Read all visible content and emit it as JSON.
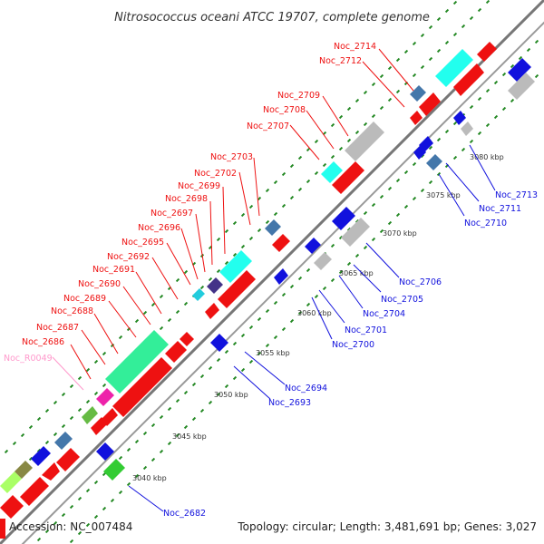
{
  "title": "Nitrosococcus oceani ATCC 19707, complete genome",
  "footer": {
    "accession": "Accession: NC_007484",
    "summary": "Topology: circular; Length: 3,481,691 bp; Genes: 3,027"
  },
  "colors": {
    "forward_gene": "#ee1111",
    "reverse_gene": "#1111dd",
    "forward_label": "#ee1111",
    "reverse_label": "#1111dd",
    "rna_label": "#ff99cc",
    "backbone": "#777777",
    "tick": "#228822",
    "cyan_feature": "#22ffee",
    "green_feature": "#33ee99",
    "magenta_feature": "#ee22aa",
    "steelblue_feature": "#4477aa",
    "grey_feature": "#bbbbbb"
  },
  "scale_marks": [
    {
      "label": "3040 kbp"
    },
    {
      "label": "3045 kbp"
    },
    {
      "label": "3050 kbp"
    },
    {
      "label": "3055 kbp"
    },
    {
      "label": "3060 kbp"
    },
    {
      "label": "3065 kbp"
    },
    {
      "label": "3070 kbp"
    },
    {
      "label": "3075 kbp"
    },
    {
      "label": "3080 kbp"
    }
  ],
  "forward_labels": [
    {
      "id": "Noc_R0049",
      "type": "rna"
    },
    {
      "id": "Noc_2686"
    },
    {
      "id": "Noc_2687"
    },
    {
      "id": "Noc_2688"
    },
    {
      "id": "Noc_2689"
    },
    {
      "id": "Noc_2690"
    },
    {
      "id": "Noc_2691"
    },
    {
      "id": "Noc_2692"
    },
    {
      "id": "Noc_2695"
    },
    {
      "id": "Noc_2696"
    },
    {
      "id": "Noc_2697"
    },
    {
      "id": "Noc_2698"
    },
    {
      "id": "Noc_2699"
    },
    {
      "id": "Noc_2702"
    },
    {
      "id": "Noc_2703"
    },
    {
      "id": "Noc_2707"
    },
    {
      "id": "Noc_2708"
    },
    {
      "id": "Noc_2709"
    },
    {
      "id": "Noc_2712"
    },
    {
      "id": "Noc_2714"
    }
  ],
  "reverse_labels": [
    {
      "id": "Noc_2682"
    },
    {
      "id": "Noc_2693"
    },
    {
      "id": "Noc_2694"
    },
    {
      "id": "Noc_2700"
    },
    {
      "id": "Noc_2701"
    },
    {
      "id": "Noc_2704"
    },
    {
      "id": "Noc_2705"
    },
    {
      "id": "Noc_2706"
    },
    {
      "id": "Noc_2710"
    },
    {
      "id": "Noc_2711"
    },
    {
      "id": "Noc_2713"
    }
  ]
}
